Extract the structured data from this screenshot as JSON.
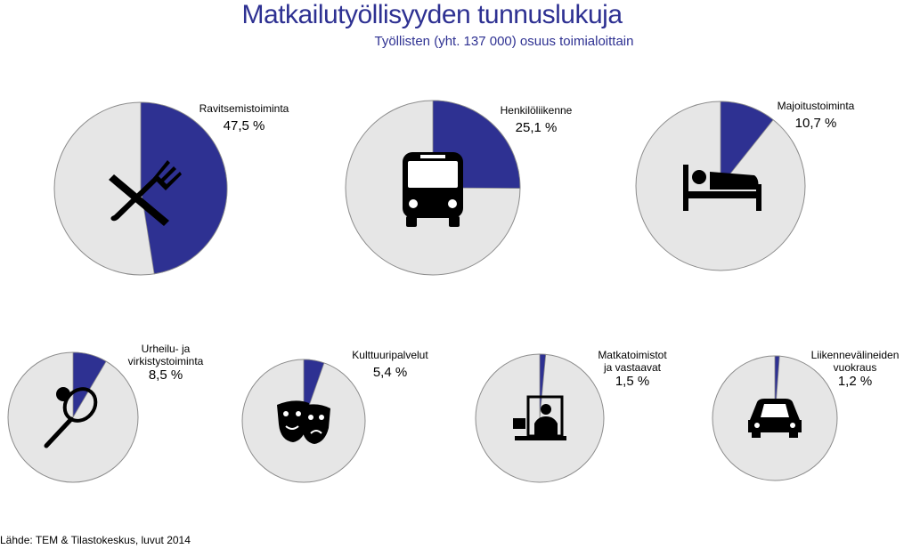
{
  "title": "Matkailutyöllisyyden tunnuslukuja",
  "subtitle": "Työllisten (yht. 137 000) osuus toimialoittain",
  "source": "Lähde: TEM & Tilastokeskus, luvut 2014",
  "colors": {
    "share": "#2e3192",
    "rest": "#e6e6e6",
    "outline": "#8c8c8c",
    "icon": "#000000"
  },
  "chart_data": {
    "type": "pie",
    "title": "Matkailutyöllisyyden tunnuslukuja",
    "subtitle": "Työllisten (yht. 137 000) osuus toimialoittain",
    "unit": "%",
    "slices": [
      {
        "label_lines": [
          "Ravitsemistoiminta"
        ],
        "value": 47.5,
        "value_label": "47,5 %",
        "icon": "fork-knife-icon"
      },
      {
        "label_lines": [
          "Henkilöliikenne"
        ],
        "value": 25.1,
        "value_label": "25,1 %",
        "icon": "bus-icon"
      },
      {
        "label_lines": [
          "Majoitustoiminta"
        ],
        "value": 10.7,
        "value_label": "10,7 %",
        "icon": "bed-icon"
      },
      {
        "label_lines": [
          "Urheilu- ja",
          "virkistystoiminta"
        ],
        "value": 8.5,
        "value_label": "8,5 %",
        "icon": "tennis-racket-icon"
      },
      {
        "label_lines": [
          "Kulttuuripalvelut"
        ],
        "value": 5.4,
        "value_label": "5,4 %",
        "icon": "theater-masks-icon"
      },
      {
        "label_lines": [
          "Matkatoimistot",
          "ja vastaavat"
        ],
        "value": 1.5,
        "value_label": "1,5 %",
        "icon": "travel-agent-desk-icon"
      },
      {
        "label_lines": [
          "Liikennevälineiden",
          "vuokraus"
        ],
        "value": 1.2,
        "value_label": "1,2 %",
        "icon": "car-icon"
      }
    ]
  }
}
